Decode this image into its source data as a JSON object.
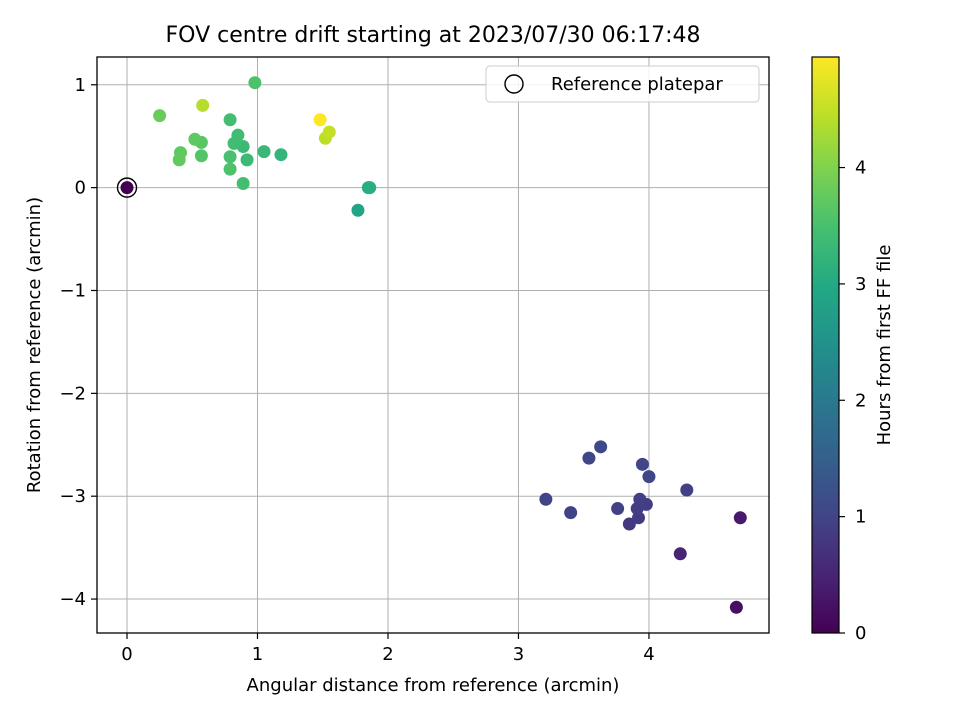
{
  "chart_data": {
    "type": "scatter",
    "title": "FOV centre drift starting at 2023/07/30 06:17:48",
    "xlabel": "Angular distance from reference (arcmin)",
    "ylabel": "Rotation from reference (arcmin)",
    "xlim": [
      -0.23,
      4.92
    ],
    "ylim": [
      -4.33,
      1.27
    ],
    "xticks": [
      0,
      1,
      2,
      3,
      4
    ],
    "yticks": [
      -4,
      -3,
      -2,
      -1,
      0,
      1
    ],
    "grid": true,
    "legend": {
      "position": "top-right",
      "entries": [
        "Reference platepar"
      ]
    },
    "colorbar": {
      "label": "Hours from first FF file",
      "range": [
        0,
        4.95
      ],
      "ticks": [
        0,
        1,
        2,
        3,
        4
      ],
      "colormap": "viridis"
    },
    "reference_point": {
      "x": 0,
      "y": 0
    },
    "points": [
      {
        "x": 0.0,
        "y": 0.0,
        "c": 0.0
      },
      {
        "x": 4.67,
        "y": -4.08,
        "c": 0.2
      },
      {
        "x": 4.7,
        "y": -3.21,
        "c": 0.35
      },
      {
        "x": 4.24,
        "y": -3.56,
        "c": 0.5
      },
      {
        "x": 3.85,
        "y": -3.27,
        "c": 0.8
      },
      {
        "x": 3.92,
        "y": -3.21,
        "c": 0.85
      },
      {
        "x": 3.91,
        "y": -3.12,
        "c": 0.88
      },
      {
        "x": 3.98,
        "y": -3.08,
        "c": 0.9
      },
      {
        "x": 3.93,
        "y": -3.03,
        "c": 0.92
      },
      {
        "x": 3.76,
        "y": -3.12,
        "c": 0.95
      },
      {
        "x": 4.29,
        "y": -2.94,
        "c": 0.95
      },
      {
        "x": 3.4,
        "y": -3.16,
        "c": 0.97
      },
      {
        "x": 3.21,
        "y": -3.03,
        "c": 1.0
      },
      {
        "x": 4.0,
        "y": -2.81,
        "c": 1.02
      },
      {
        "x": 3.95,
        "y": -2.69,
        "c": 1.03
      },
      {
        "x": 3.54,
        "y": -2.63,
        "c": 1.05
      },
      {
        "x": 3.63,
        "y": -2.52,
        "c": 1.07
      },
      {
        "x": 1.77,
        "y": -0.22,
        "c": 2.9
      },
      {
        "x": 1.85,
        "y": 0.0,
        "c": 2.95
      },
      {
        "x": 1.86,
        "y": 0.0,
        "c": 3.1
      },
      {
        "x": 1.18,
        "y": 0.32,
        "c": 3.25
      },
      {
        "x": 1.05,
        "y": 0.35,
        "c": 3.3
      },
      {
        "x": 0.92,
        "y": 0.27,
        "c": 3.35
      },
      {
        "x": 0.89,
        "y": 0.4,
        "c": 3.35
      },
      {
        "x": 0.85,
        "y": 0.51,
        "c": 3.4
      },
      {
        "x": 0.82,
        "y": 0.43,
        "c": 3.4
      },
      {
        "x": 0.89,
        "y": 0.04,
        "c": 3.45
      },
      {
        "x": 0.79,
        "y": 0.3,
        "c": 3.5
      },
      {
        "x": 0.79,
        "y": 0.18,
        "c": 3.55
      },
      {
        "x": 0.79,
        "y": 0.66,
        "c": 3.45
      },
      {
        "x": 0.98,
        "y": 1.02,
        "c": 3.55
      },
      {
        "x": 0.57,
        "y": 0.31,
        "c": 3.6
      },
      {
        "x": 0.57,
        "y": 0.44,
        "c": 3.65
      },
      {
        "x": 0.52,
        "y": 0.47,
        "c": 3.7
      },
      {
        "x": 0.41,
        "y": 0.34,
        "c": 3.7
      },
      {
        "x": 0.4,
        "y": 0.27,
        "c": 3.75
      },
      {
        "x": 0.25,
        "y": 0.7,
        "c": 3.8
      },
      {
        "x": 0.58,
        "y": 0.8,
        "c": 4.4
      },
      {
        "x": 1.52,
        "y": 0.48,
        "c": 4.45
      },
      {
        "x": 1.55,
        "y": 0.54,
        "c": 4.5
      },
      {
        "x": 1.48,
        "y": 0.66,
        "c": 4.95
      }
    ]
  }
}
